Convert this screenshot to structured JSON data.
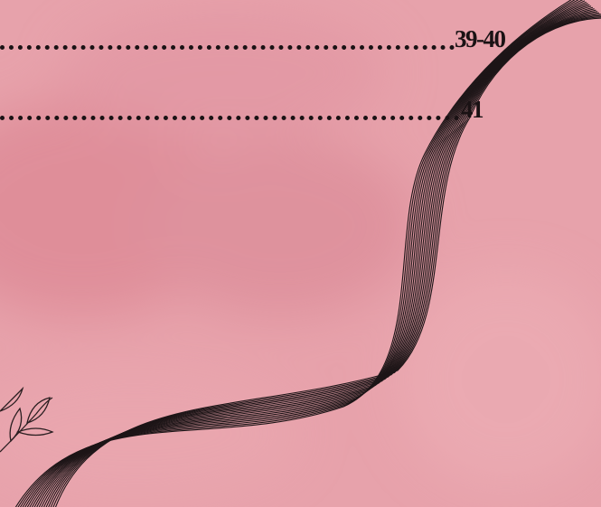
{
  "toc": {
    "entries": [
      {
        "page": "39-40"
      },
      {
        "page": "41"
      }
    ]
  }
}
